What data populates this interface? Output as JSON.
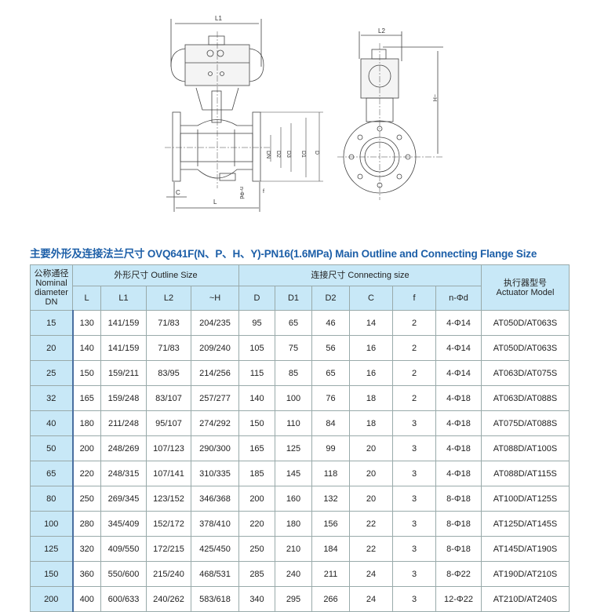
{
  "drawing": {
    "front_labels": [
      "L1",
      "DN",
      "D2",
      "D3",
      "D1",
      "D",
      "C",
      "L",
      "f",
      "n-Φd"
    ],
    "side_labels": [
      "L2",
      "~H"
    ]
  },
  "title": "主要外形及连接法兰尺寸 OVQ641F(N、P、H、Y)-PN16(1.6MPa)  Main Outline and Connecting Flange Size",
  "table": {
    "header": {
      "dn": [
        "公称通径",
        "Nominal",
        "diameter",
        "DN"
      ],
      "outline": "外形尺寸 Outline Size",
      "connecting": "连接尺寸 Connecting size",
      "actuator": [
        "执行器型号",
        "Actuator Model"
      ],
      "sub": [
        "L",
        "L1",
        "L2",
        "~H",
        "D",
        "D1",
        "D2",
        "C",
        "f",
        "n-Φd"
      ]
    },
    "rows": [
      [
        "15",
        "130",
        "141/159",
        "71/83",
        "204/235",
        "95",
        "65",
        "46",
        "14",
        "2",
        "4-Φ14",
        "AT050D/AT063S"
      ],
      [
        "20",
        "140",
        "141/159",
        "71/83",
        "209/240",
        "105",
        "75",
        "56",
        "16",
        "2",
        "4-Φ14",
        "AT050D/AT063S"
      ],
      [
        "25",
        "150",
        "159/211",
        "83/95",
        "214/256",
        "115",
        "85",
        "65",
        "16",
        "2",
        "4-Φ14",
        "AT063D/AT075S"
      ],
      [
        "32",
        "165",
        "159/248",
        "83/107",
        "257/277",
        "140",
        "100",
        "76",
        "18",
        "2",
        "4-Φ18",
        "AT063D/AT088S"
      ],
      [
        "40",
        "180",
        "211/248",
        "95/107",
        "274/292",
        "150",
        "110",
        "84",
        "18",
        "3",
        "4-Φ18",
        "AT075D/AT088S"
      ],
      [
        "50",
        "200",
        "248/269",
        "107/123",
        "290/300",
        "165",
        "125",
        "99",
        "20",
        "3",
        "4-Φ18",
        "AT088D/AT100S"
      ],
      [
        "65",
        "220",
        "248/315",
        "107/141",
        "310/335",
        "185",
        "145",
        "118",
        "20",
        "3",
        "4-Φ18",
        "AT088D/AT115S"
      ],
      [
        "80",
        "250",
        "269/345",
        "123/152",
        "346/368",
        "200",
        "160",
        "132",
        "20",
        "3",
        "8-Φ18",
        "AT100D/AT125S"
      ],
      [
        "100",
        "280",
        "345/409",
        "152/172",
        "378/410",
        "220",
        "180",
        "156",
        "22",
        "3",
        "8-Φ18",
        "AT125D/AT145S"
      ],
      [
        "125",
        "320",
        "409/550",
        "172/215",
        "425/450",
        "250",
        "210",
        "184",
        "22",
        "3",
        "8-Φ18",
        "AT145D/AT190S"
      ],
      [
        "150",
        "360",
        "550/600",
        "215/240",
        "468/531",
        "285",
        "240",
        "211",
        "24",
        "3",
        "8-Φ22",
        "AT190D/AT210S"
      ],
      [
        "200",
        "400",
        "600/633",
        "240/262",
        "583/618",
        "340",
        "295",
        "266",
        "24",
        "3",
        "12-Φ22",
        "AT210D/AT240S"
      ]
    ]
  },
  "colors": {
    "title": "#1d5fa8",
    "header_bg": "#c8e8f7"
  }
}
